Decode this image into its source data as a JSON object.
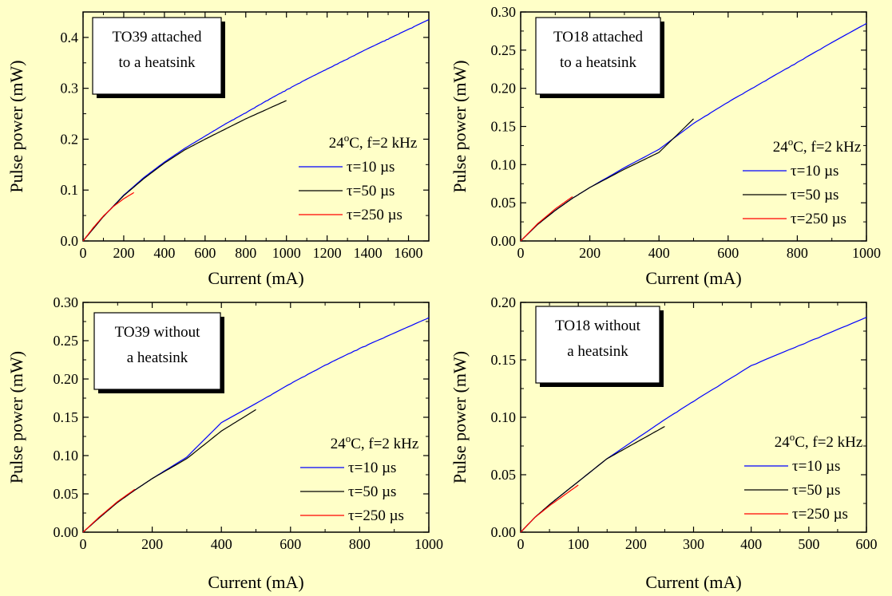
{
  "chart_data": [
    {
      "type": "line",
      "annotation": [
        "TO39 attached",
        "to a heatsink"
      ],
      "conditions": "24°C, f=2 kHz",
      "xlabel": "Current (mA)",
      "ylabel": "Pulse power (mW)",
      "xlim": [
        0,
        1700
      ],
      "ylim": [
        0,
        0.45
      ],
      "xticks": [
        0,
        200,
        400,
        600,
        800,
        1000,
        1200,
        1400,
        1600
      ],
      "yticks": [
        0.0,
        0.1,
        0.2,
        0.3,
        0.4
      ],
      "ytick_decimals": 1,
      "series": [
        {
          "name": "τ=10 µs",
          "color": "#0000ff",
          "x": [
            0,
            100,
            200,
            300,
            400,
            500,
            600,
            700,
            800,
            900,
            1000,
            1100,
            1200,
            1300,
            1400,
            1500,
            1600,
            1700
          ],
          "y": [
            0,
            0.048,
            0.09,
            0.125,
            0.155,
            0.182,
            0.206,
            0.23,
            0.252,
            0.275,
            0.297,
            0.318,
            0.338,
            0.358,
            0.378,
            0.397,
            0.416,
            0.435
          ]
        },
        {
          "name": "τ=50 µs",
          "color": "#000000",
          "x": [
            0,
            100,
            200,
            300,
            400,
            500,
            600,
            700,
            800,
            900,
            1000
          ],
          "y": [
            0,
            0.048,
            0.089,
            0.123,
            0.153,
            0.179,
            0.2,
            0.22,
            0.24,
            0.258,
            0.276
          ]
        },
        {
          "name": "τ=250 µs",
          "color": "#ff0000",
          "x": [
            0,
            50,
            100,
            150,
            200,
            250
          ],
          "y": [
            0,
            0.026,
            0.049,
            0.068,
            0.083,
            0.095
          ]
        }
      ]
    },
    {
      "type": "line",
      "annotation": [
        "TO18 attached",
        "to a heatsink"
      ],
      "conditions": "24°C, f=2 kHz",
      "xlabel": "Current (mA)",
      "ylabel": "Pulse power (mW)",
      "xlim": [
        0,
        1000
      ],
      "ylim": [
        0,
        0.3
      ],
      "xticks": [
        0,
        200,
        400,
        600,
        800,
        1000
      ],
      "yticks": [
        0.0,
        0.05,
        0.1,
        0.15,
        0.2,
        0.25,
        0.3
      ],
      "ytick_decimals": 2,
      "series": [
        {
          "name": "τ=10 µs",
          "color": "#0000ff",
          "x": [
            0,
            50,
            100,
            150,
            200,
            300,
            400,
            500,
            600,
            700,
            800,
            900,
            1000
          ],
          "y": [
            0,
            0.022,
            0.04,
            0.056,
            0.07,
            0.096,
            0.12,
            0.154,
            0.182,
            0.208,
            0.234,
            0.26,
            0.285
          ]
        },
        {
          "name": "τ=50 µs",
          "color": "#000000",
          "x": [
            0,
            50,
            100,
            150,
            200,
            300,
            400,
            500
          ],
          "y": [
            0,
            0.022,
            0.04,
            0.056,
            0.07,
            0.094,
            0.116,
            0.16
          ]
        },
        {
          "name": "τ=250 µs",
          "color": "#ff0000",
          "x": [
            0,
            50,
            100,
            150
          ],
          "y": [
            0,
            0.023,
            0.042,
            0.058
          ]
        }
      ]
    },
    {
      "type": "line",
      "annotation": [
        "TO39 without",
        "a heatsink"
      ],
      "conditions": "24°C, f=2 kHz",
      "xlabel": "Current (mA)",
      "ylabel": "Pulse power (mW)",
      "xlim": [
        0,
        1000
      ],
      "ylim": [
        0,
        0.3
      ],
      "xticks": [
        0,
        200,
        400,
        600,
        800,
        1000
      ],
      "yticks": [
        0.0,
        0.05,
        0.1,
        0.15,
        0.2,
        0.25,
        0.3
      ],
      "ytick_decimals": 2,
      "series": [
        {
          "name": "τ=10 µs",
          "color": "#0000ff",
          "x": [
            0,
            50,
            100,
            150,
            200,
            300,
            400,
            500,
            600,
            700,
            800,
            900,
            1000
          ],
          "y": [
            0,
            0.02,
            0.039,
            0.055,
            0.07,
            0.098,
            0.143,
            0.168,
            0.194,
            0.218,
            0.24,
            0.26,
            0.28
          ]
        },
        {
          "name": "τ=50 µs",
          "color": "#000000",
          "x": [
            0,
            50,
            100,
            150,
            200,
            300,
            400,
            500
          ],
          "y": [
            0,
            0.02,
            0.039,
            0.055,
            0.07,
            0.096,
            0.132,
            0.16
          ]
        },
        {
          "name": "τ=250 µs",
          "color": "#ff0000",
          "x": [
            0,
            50,
            100,
            150
          ],
          "y": [
            0,
            0.021,
            0.04,
            0.056
          ]
        }
      ]
    },
    {
      "type": "line",
      "annotation": [
        "TO18 without",
        "a heatsink"
      ],
      "conditions": "24°C, f=2 kHz",
      "xlabel": "Current (mA)",
      "ylabel": "Pulse power (mW)",
      "xlim": [
        0,
        600
      ],
      "ylim": [
        0,
        0.2
      ],
      "xticks": [
        0,
        100,
        200,
        300,
        400,
        500,
        600
      ],
      "yticks": [
        0.0,
        0.05,
        0.1,
        0.15,
        0.2
      ],
      "ytick_decimals": 2,
      "series": [
        {
          "name": "τ=10 µs",
          "color": "#0000ff",
          "x": [
            0,
            25,
            50,
            75,
            100,
            150,
            200,
            250,
            300,
            400,
            500,
            600
          ],
          "y": [
            0,
            0.013,
            0.024,
            0.034,
            0.044,
            0.064,
            0.081,
            0.098,
            0.114,
            0.145,
            0.166,
            0.187
          ]
        },
        {
          "name": "τ=50 µs",
          "color": "#000000",
          "x": [
            0,
            25,
            50,
            75,
            100,
            150,
            200,
            250
          ],
          "y": [
            0,
            0.013,
            0.024,
            0.034,
            0.044,
            0.064,
            0.078,
            0.092
          ]
        },
        {
          "name": "τ=250 µs",
          "color": "#ff0000",
          "x": [
            0,
            25,
            50,
            75,
            100
          ],
          "y": [
            0,
            0.013,
            0.023,
            0.032,
            0.041
          ]
        }
      ]
    }
  ]
}
